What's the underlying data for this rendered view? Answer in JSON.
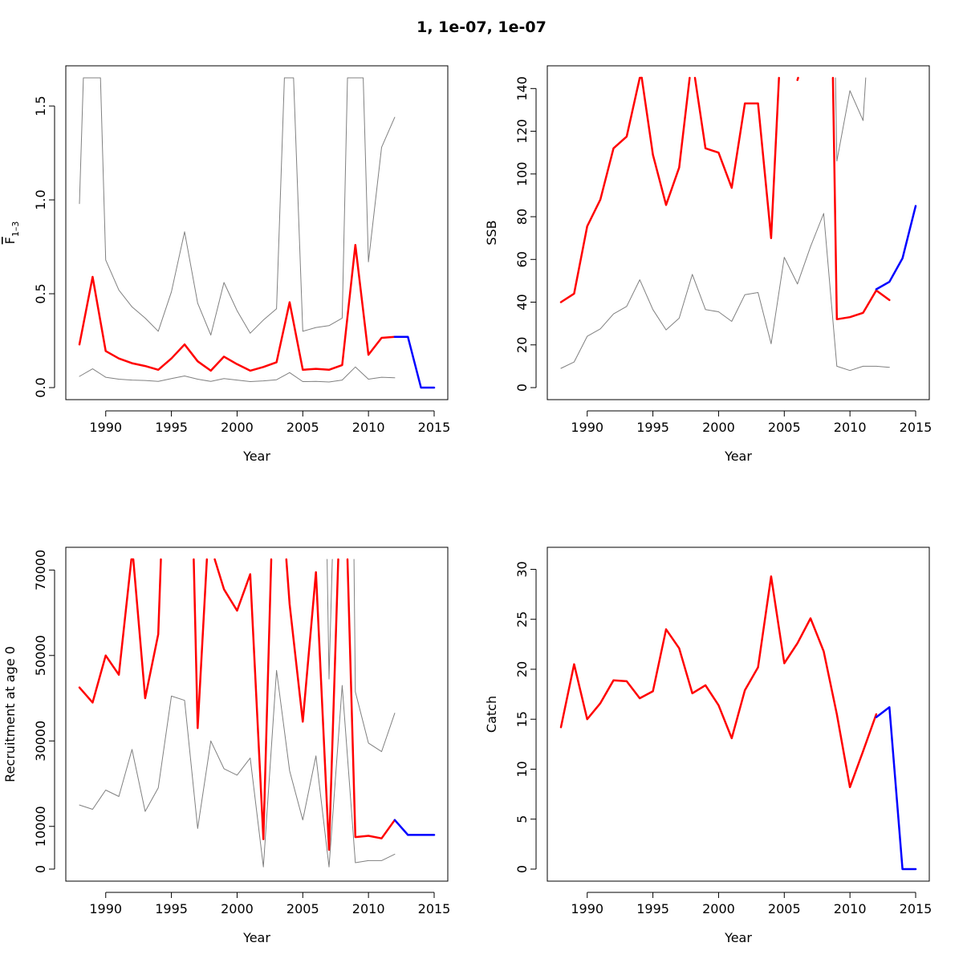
{
  "figure": {
    "title": "1, 1e-07, 1e-07"
  },
  "colors": {
    "estimate": "#ff0000",
    "forecast": "#0000ff",
    "ci": "#808080",
    "axis": "#000000"
  },
  "chart_data": [
    {
      "type": "line",
      "panel": "top-left",
      "xlabel": "Year",
      "ylabel": "F̄1–3",
      "ylabel_main": "F",
      "ylabel_sub": "1–3",
      "xlim": [
        1988,
        2015
      ],
      "ylim": [
        0,
        1.65
      ],
      "xticks": [
        1990,
        1995,
        2000,
        2005,
        2010,
        2015
      ],
      "yticks": [
        0.0,
        0.5,
        1.0,
        1.5
      ],
      "ytick_labels": [
        "0.0",
        "0.5",
        "1.0",
        "1.5"
      ],
      "series": [
        {
          "role": "upper",
          "color": "#808080",
          "x": [
            1988,
            1988.3,
            1989.6,
            1990,
            1991,
            1992,
            1993,
            1994,
            1995,
            1996,
            1997,
            1998,
            1999,
            2000,
            2001,
            2002,
            2003,
            2003.6,
            2004.1,
            2004.3,
            2005,
            2006,
            2007,
            2008,
            2008.4,
            2009.6,
            2010,
            2011,
            2012
          ],
          "y": [
            0.98,
            1.65,
            1.65,
            0.68,
            0.52,
            0.43,
            0.37,
            0.3,
            0.51,
            0.83,
            0.45,
            0.28,
            0.56,
            0.41,
            0.29,
            0.36,
            0.42,
            1.65,
            1.65,
            1.65,
            0.3,
            0.32,
            0.33,
            0.37,
            1.65,
            1.65,
            0.67,
            1.28,
            1.44
          ]
        },
        {
          "role": "lower",
          "color": "#808080",
          "x": [
            1988,
            1989,
            1990,
            1991,
            1992,
            1993,
            1994,
            1995,
            1996,
            1997,
            1998,
            1999,
            2000,
            2001,
            2002,
            2003,
            2004,
            2005,
            2006,
            2007,
            2008,
            2009,
            2010,
            2011,
            2012
          ],
          "y": [
            0.06,
            0.1,
            0.055,
            0.045,
            0.04,
            0.038,
            0.033,
            0.048,
            0.062,
            0.045,
            0.033,
            0.048,
            0.04,
            0.032,
            0.036,
            0.042,
            0.08,
            0.032,
            0.033,
            0.03,
            0.04,
            0.11,
            0.045,
            0.055,
            0.052
          ]
        },
        {
          "role": "estimate",
          "color": "#ff0000",
          "x": [
            1988,
            1989,
            1990,
            1991,
            1992,
            1993,
            1994,
            1995,
            1996,
            1997,
            1998,
            1999,
            2000,
            2001,
            2002,
            2003,
            2004,
            2005,
            2006,
            2007,
            2008,
            2009,
            2010,
            2011,
            2012
          ],
          "y": [
            0.23,
            0.59,
            0.195,
            0.155,
            0.13,
            0.115,
            0.095,
            0.155,
            0.23,
            0.14,
            0.09,
            0.165,
            0.125,
            0.09,
            0.11,
            0.135,
            0.455,
            0.095,
            0.1,
            0.095,
            0.12,
            0.76,
            0.175,
            0.265,
            0.27
          ]
        },
        {
          "role": "forecast",
          "color": "#0000ff",
          "x": [
            2012,
            2013,
            2014,
            2015
          ],
          "y": [
            0.27,
            0.27,
            0.0,
            0.0
          ]
        }
      ]
    },
    {
      "type": "line",
      "panel": "top-right",
      "xlabel": "Year",
      "ylabel": "SSB",
      "xlim": [
        1988,
        2015
      ],
      "ylim": [
        0,
        145
      ],
      "xticks": [
        1990,
        1995,
        2000,
        2005,
        2010,
        2015
      ],
      "yticks": [
        0,
        20,
        40,
        60,
        80,
        100,
        120,
        140
      ],
      "ytick_labels": [
        "0",
        "20",
        "40",
        "60",
        "80",
        "100",
        "120",
        "140"
      ],
      "series": [
        {
          "role": "upper",
          "color": "#808080",
          "x": [
            2008.9,
            2009,
            2010,
            2011,
            2011.2
          ],
          "y": [
            145,
            106,
            139,
            125,
            145
          ]
        },
        {
          "role": "lower",
          "color": "#808080",
          "x": [
            1988,
            1989,
            1990,
            1991,
            1992,
            1993,
            1994,
            1995,
            1996,
            1997,
            1998,
            1999,
            2000,
            2001,
            2002,
            2003,
            2004,
            2005,
            2006,
            2007,
            2008,
            2009,
            2010,
            2011,
            2012,
            2013
          ],
          "y": [
            9,
            12,
            24,
            27.5,
            34.5,
            38,
            50.5,
            36.5,
            27,
            32.5,
            53,
            36.5,
            35.5,
            31,
            43.5,
            44.5,
            20.5,
            61,
            48.5,
            66,
            81.5,
            10,
            8,
            10,
            10,
            9.5
          ]
        },
        {
          "role": "estimate",
          "color": "#ff0000",
          "x": [
            1988,
            1989,
            1990,
            1991,
            1992,
            1993,
            1994,
            1994.15
          ],
          "y": [
            40,
            44,
            75.5,
            88,
            112,
            117.5,
            145,
            145
          ]
        },
        {
          "role": "estimate",
          "color": "#ff0000",
          "x": [
            1994.15,
            1995,
            1996,
            1997,
            1997.8
          ],
          "y": [
            145,
            109,
            85.5,
            103,
            145
          ]
        },
        {
          "role": "estimate",
          "color": "#ff0000",
          "x": [
            1998.2,
            1999,
            2000,
            2001,
            2002,
            2003,
            2004,
            2004.6
          ],
          "y": [
            145,
            112,
            110,
            93.5,
            133,
            133,
            70,
            145
          ]
        },
        {
          "role": "estimate",
          "color": "#ff0000",
          "x": [
            2006,
            2006.05
          ],
          "y": [
            144,
            145
          ]
        },
        {
          "role": "estimate",
          "color": "#ff0000",
          "x": [
            2008.7,
            2009,
            2010,
            2011,
            2012,
            2013
          ],
          "y": [
            145,
            32,
            33,
            35,
            45.5,
            41
          ]
        },
        {
          "role": "forecast",
          "color": "#0000ff",
          "x": [
            2012,
            2013,
            2014,
            2015
          ],
          "y": [
            46,
            49.5,
            60.5,
            85
          ]
        }
      ]
    },
    {
      "type": "line",
      "panel": "bottom-left",
      "xlabel": "Year",
      "ylabel": "Recruitment at age 0",
      "xlim": [
        1988,
        2015
      ],
      "ylim": [
        0,
        72500
      ],
      "xticks": [
        1990,
        1995,
        2000,
        2005,
        2010,
        2015
      ],
      "yticks": [
        0,
        10000,
        30000,
        50000,
        70000
      ],
      "ytick_labels": [
        "0",
        "10000",
        "30000",
        "50000",
        "70000"
      ],
      "series": [
        {
          "role": "upper",
          "color": "#808080",
          "x": [
            2006.85,
            2007,
            2007.25
          ],
          "y": [
            72500,
            44500,
            72500
          ]
        },
        {
          "role": "upper",
          "color": "#808080",
          "x": [
            2008.9,
            2009,
            2010,
            2011,
            2012
          ],
          "y": [
            72500,
            41500,
            29500,
            27500,
            36500
          ]
        },
        {
          "role": "lower",
          "color": "#808080",
          "x": [
            1988,
            1989,
            1990,
            1991,
            1992,
            1993,
            1994,
            1995,
            1996,
            1997,
            1998,
            1999,
            2000,
            2001,
            2002,
            2003,
            2004,
            2005,
            2006,
            2007,
            2008,
            2009,
            2010,
            2011,
            2012
          ],
          "y": [
            15000,
            14000,
            18500,
            17000,
            28000,
            13500,
            19000,
            40500,
            39500,
            9500,
            30000,
            23500,
            22000,
            26000,
            500,
            46500,
            23000,
            11500,
            26500,
            500,
            43000,
            1500,
            2000,
            2000,
            3500
          ]
        },
        {
          "role": "estimate",
          "color": "#ff0000",
          "x": [
            1988,
            1989,
            1990,
            1991,
            1991.95,
            1992.1,
            1993,
            1994,
            1994.2
          ],
          "y": [
            42500,
            39000,
            50000,
            45500,
            72500,
            72500,
            40000,
            55000,
            72500
          ]
        },
        {
          "role": "estimate",
          "color": "#ff0000",
          "x": [
            1996.7,
            1997,
            1997.7
          ],
          "y": [
            72500,
            33000,
            72500
          ]
        },
        {
          "role": "estimate",
          "color": "#ff0000",
          "x": [
            1998.3,
            1999,
            2000,
            2001,
            2002,
            2002.6
          ],
          "y": [
            72500,
            65500,
            60500,
            69000,
            7000,
            72500
          ]
        },
        {
          "role": "estimate",
          "color": "#ff0000",
          "x": [
            2003.75,
            2004,
            2005,
            2006,
            2007,
            2007.7
          ],
          "y": [
            72500,
            62000,
            34500,
            69500,
            4500,
            72500
          ]
        },
        {
          "role": "estimate",
          "color": "#ff0000",
          "x": [
            2008.4,
            2009,
            2010,
            2011,
            2012
          ],
          "y": [
            72500,
            7500,
            7800,
            7200,
            11500
          ]
        },
        {
          "role": "forecast",
          "color": "#0000ff",
          "x": [
            2012,
            2013,
            2014,
            2015
          ],
          "y": [
            11500,
            8000,
            8000,
            8000
          ]
        }
      ]
    },
    {
      "type": "line",
      "panel": "bottom-right",
      "xlabel": "Year",
      "ylabel": "Catch",
      "xlim": [
        1988,
        2015
      ],
      "ylim": [
        0,
        31
      ],
      "xticks": [
        1990,
        1995,
        2000,
        2005,
        2010,
        2015
      ],
      "yticks": [
        0,
        5,
        10,
        15,
        20,
        25,
        30
      ],
      "ytick_labels": [
        "0",
        "5",
        "10",
        "15",
        "20",
        "25",
        "30"
      ],
      "series": [
        {
          "role": "estimate",
          "color": "#ff0000",
          "x": [
            1988,
            1989,
            1990,
            1991,
            1992,
            1993,
            1994,
            1995,
            1996,
            1997,
            1998,
            1999,
            2000,
            2001,
            2002,
            2003,
            2004,
            2005,
            2006,
            2007,
            2008,
            2009,
            2010,
            2011,
            2012
          ],
          "y": [
            14.2,
            20.5,
            15.0,
            16.6,
            18.9,
            18.8,
            17.1,
            17.8,
            24.0,
            22.1,
            17.6,
            18.4,
            16.4,
            13.1,
            17.9,
            20.2,
            29.3,
            20.6,
            22.6,
            25.1,
            21.8,
            15.5,
            8.2,
            11.8,
            15.5
          ]
        },
        {
          "role": "forecast",
          "color": "#0000ff",
          "x": [
            2012,
            2013,
            2014,
            2015
          ],
          "y": [
            15.2,
            16.2,
            0.0,
            0.0
          ]
        }
      ]
    }
  ]
}
